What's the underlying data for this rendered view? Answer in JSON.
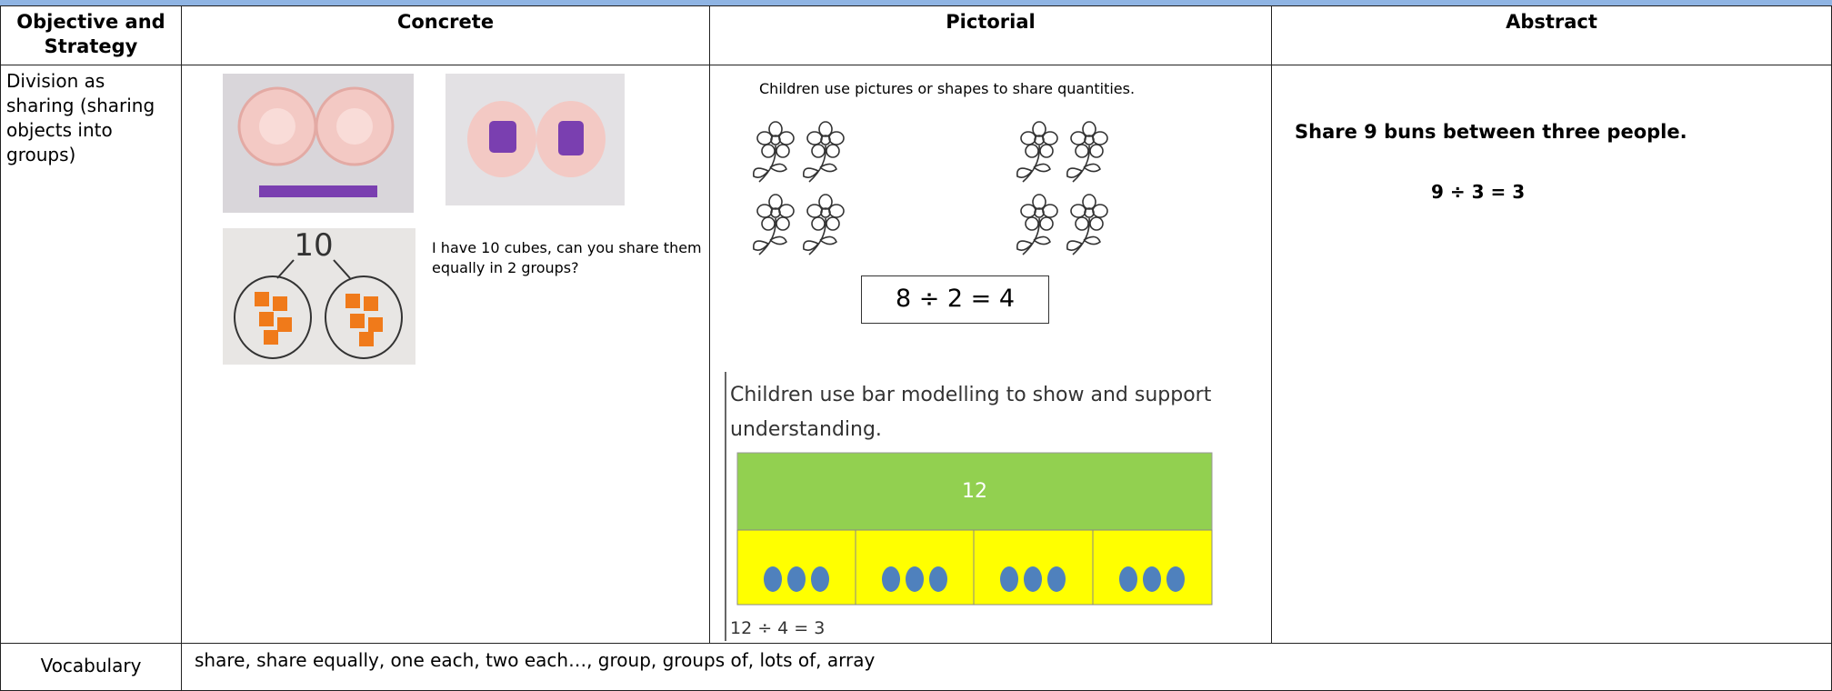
{
  "header": {
    "objective": "Objective and Strategy",
    "concrete": "Concrete",
    "pictorial": "Pictorial",
    "abstract": "Abstract"
  },
  "row": {
    "objective": "Division as sharing (sharing objects into groups)",
    "concrete": {
      "photo_label": "10",
      "caption": "I have 10 cubes, can you share them equally in 2 groups?"
    },
    "pictorial": {
      "caption": "Children use pictures or shapes to share quantities.",
      "equation": "8 ÷ 2 = 4",
      "bar_caption": "Children use bar modelling to show and support understanding.",
      "bar_whole": "12",
      "bar_equation": "12 ÷ 4 = 3"
    },
    "abstract": {
      "problem": "Share 9 buns between three people.",
      "equation": "9 ÷ 3 = 3"
    }
  },
  "vocabulary": {
    "label": "Vocabulary",
    "text": "share, share equally, one each, two each…, group, groups of, lots of, array"
  }
}
